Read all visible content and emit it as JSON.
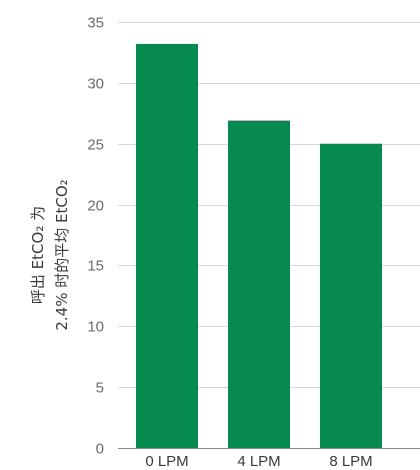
{
  "chart_data": {
    "type": "bar",
    "categories": [
      "0 LPM",
      "4 LPM",
      "8 LPM"
    ],
    "values": [
      33.2,
      26.9,
      25.0
    ],
    "ylabel_line1": "呼出 EtCO₂ 为",
    "ylabel_line2": "2.4% 时的平均 EtCO₂",
    "xlabel": "",
    "ylim": [
      0,
      35
    ],
    "yticks": [
      0,
      5,
      10,
      15,
      20,
      25,
      30,
      35
    ],
    "grid": true,
    "bar_color": "#078a50"
  }
}
